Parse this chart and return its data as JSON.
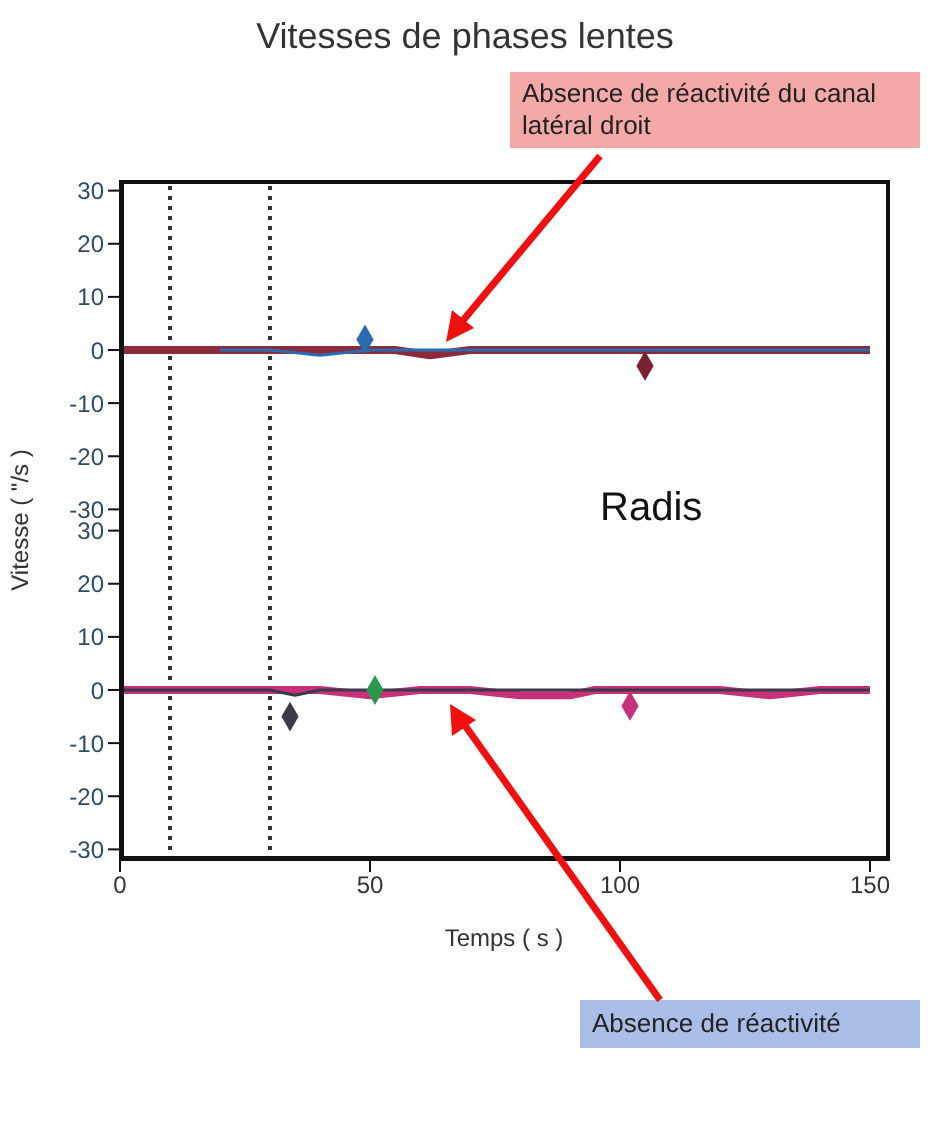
{
  "chart_data": [
    {
      "type": "line",
      "title": "Vitesses de phases lentes",
      "ylabel": "Vitesse ( \"/s )",
      "annotations": [
        "Radis",
        "Absence de réactivité du canal latéral droit"
      ],
      "xlim": [
        0,
        154
      ],
      "xticks": [
        0,
        50,
        100,
        150
      ],
      "ylim": [
        -32,
        32
      ],
      "yticks": [
        -30,
        -20,
        -10,
        0,
        10,
        20,
        30
      ],
      "tick_labels": "y",
      "grid": false,
      "legend": false,
      "ref_lines": [
        {
          "axis": "x",
          "value": 10,
          "color": "#333333",
          "line_style": "dotted"
        },
        {
          "axis": "x",
          "value": 30,
          "color": "#333333",
          "line_style": "dotted"
        }
      ],
      "series": [
        {
          "color": "#8b2a3a",
          "x": [
            0,
            10,
            20,
            30,
            40,
            48,
            55,
            62,
            70,
            80,
            90,
            100,
            110,
            120,
            130,
            140,
            150
          ],
          "values": [
            0,
            0,
            0,
            0,
            0,
            0,
            0,
            -1,
            0,
            0,
            0,
            0,
            0,
            0,
            0,
            0,
            0
          ]
        },
        {
          "color": "#2b6cb0",
          "x": [
            20,
            30,
            40,
            50,
            60,
            90,
            100,
            115,
            125,
            150
          ],
          "values": [
            0,
            0,
            -1,
            0,
            0,
            0,
            0,
            0,
            0,
            0
          ]
        },
        {
          "type": "scatter",
          "color": "#2b6cb0",
          "marker": "diamond",
          "x": [
            49
          ],
          "values": [
            2
          ]
        },
        {
          "type": "scatter",
          "color": "#7a2030",
          "marker": "diamond",
          "x": [
            105
          ],
          "values": [
            -3
          ]
        }
      ]
    },
    {
      "type": "line",
      "xlabel": "Temps ( s )",
      "annotations": [
        "Absence de réactivité"
      ],
      "xlim": [
        0,
        154
      ],
      "xticks": [
        0,
        50,
        100,
        150
      ],
      "ylim": [
        -32,
        32
      ],
      "yticks": [
        -30,
        -20,
        -10,
        0,
        10,
        20,
        30
      ],
      "grid": false,
      "legend": false,
      "ref_lines": [
        {
          "axis": "x",
          "value": 10,
          "color": "#333333",
          "line_style": "dotted"
        },
        {
          "axis": "x",
          "value": 30,
          "color": "#333333",
          "line_style": "dotted"
        }
      ],
      "series": [
        {
          "color": "#c8307a",
          "x": [
            0,
            10,
            20,
            30,
            40,
            50,
            60,
            70,
            80,
            90,
            95,
            100,
            110,
            120,
            130,
            140,
            150
          ],
          "values": [
            0,
            0,
            0,
            0,
            0,
            -1,
            0,
            0,
            -1,
            -1,
            0,
            0,
            0,
            0,
            -1,
            0,
            0
          ]
        },
        {
          "color": "#3a3a4a",
          "x": [
            0,
            10,
            20,
            30,
            35,
            40,
            50,
            60,
            70,
            80,
            90,
            100,
            110,
            120,
            130,
            140,
            150
          ],
          "values": [
            0,
            0,
            0,
            0,
            -1,
            0,
            0,
            0,
            0,
            0,
            0,
            0,
            0,
            0,
            0,
            0,
            0
          ]
        },
        {
          "type": "scatter",
          "color": "#3a3a4a",
          "marker": "diamond",
          "x": [
            34
          ],
          "values": [
            -5
          ]
        },
        {
          "type": "scatter",
          "color": "#2a9a4a",
          "marker": "diamond",
          "x": [
            51
          ],
          "values": [
            0
          ]
        },
        {
          "type": "scatter",
          "color": "#c8307a",
          "marker": "diamond",
          "x": [
            102
          ],
          "values": [
            -3
          ]
        }
      ]
    }
  ]
}
